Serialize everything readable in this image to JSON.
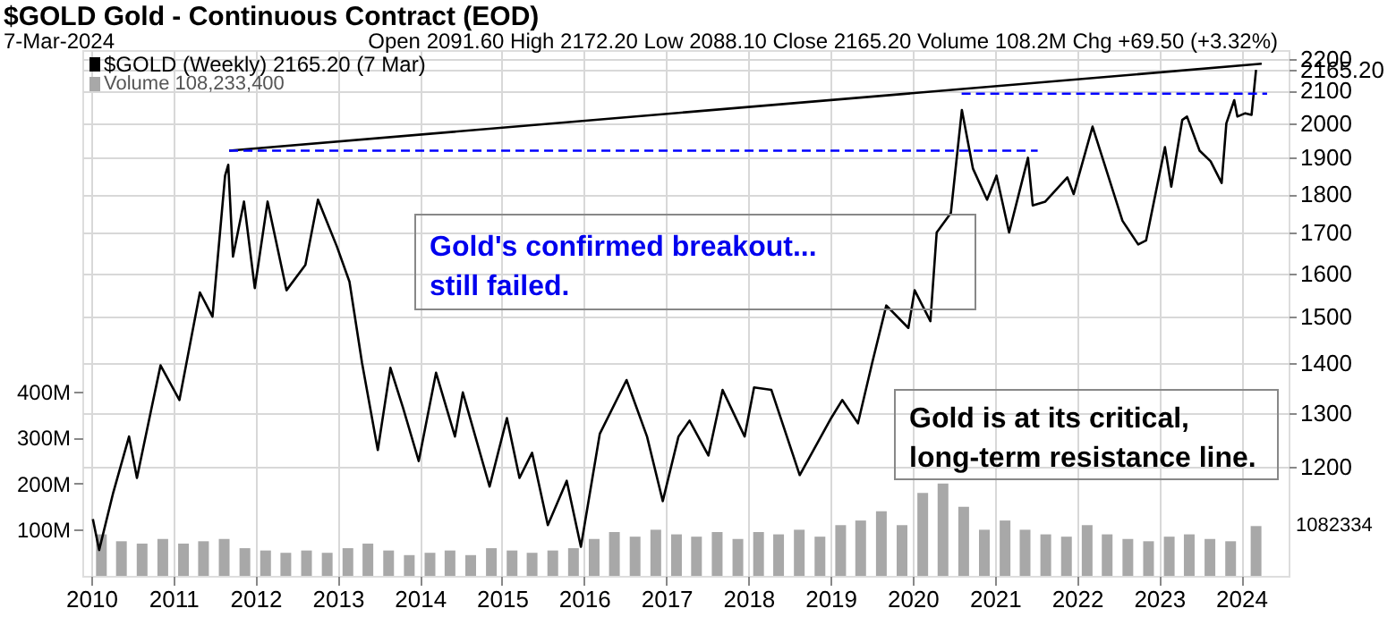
{
  "chart_data": {
    "type": "line",
    "title": "$GOLD Gold - Continuous Contract (EOD)",
    "annotations": [
      "7-Mar-2024",
      "Open 2091.60 High 2172.20 Low 2088.10 Close 2165.20 Volume 108.2M Chg +69.50 (+3.32%)",
      "Gold's confirmed breakout...\nstill failed.",
      "Gold is at its critical,\nlong-term resistance line.",
      "1082334"
    ],
    "xlim": [
      "2010-01-01",
      "2024-06-20"
    ],
    "xticks": [
      "2010",
      "2011",
      "2012",
      "2013",
      "2014",
      "2015",
      "2016",
      "2017",
      "2018",
      "2019",
      "2020",
      "2021",
      "2022",
      "2023",
      "2024"
    ],
    "log": "y",
    "ylim": [
      1020,
      2230
    ],
    "yticks": [
      1200,
      1300,
      1400,
      1500,
      1600,
      1700,
      1800,
      1900,
      2000,
      2100,
      {
        "value": 2165.2,
        "label": "2165.20"
      },
      2200
    ],
    "y2lim": [
      0,
      1140
    ],
    "y2ticks": [
      {
        "value": 100,
        "label": "100M"
      },
      {
        "value": 200,
        "label": "200M"
      },
      {
        "value": 300,
        "label": "300M"
      },
      {
        "value": 400,
        "label": "400M"
      }
    ],
    "grid": true,
    "legend": "top left",
    "marker": "none",
    "series": [
      {
        "name": "$GOLD (Weekly) 2165.20 (7 Mar)",
        "color": "#000000",
        "line_style": "solid",
        "x": [
          "2010-01-08",
          "2010-02-05",
          "2010-04-09",
          "2010-06-18",
          "2010-07-23",
          "2010-09-24",
          "2010-11-05",
          "2011-01-28",
          "2011-04-29",
          "2011-06-24",
          "2011-08-19",
          "2011-09-02",
          "2011-09-23",
          "2011-11-11",
          "2011-12-29",
          "2012-02-24",
          "2012-05-18",
          "2012-08-10",
          "2012-10-05",
          "2012-12-28",
          "2013-02-22",
          "2013-04-19",
          "2013-06-28",
          "2013-08-23",
          "2013-10-18",
          "2013-12-27",
          "2014-03-14",
          "2014-06-06",
          "2014-07-11",
          "2014-11-07",
          "2015-01-23",
          "2015-03-20",
          "2015-05-15",
          "2015-07-24",
          "2015-10-16",
          "2015-12-18",
          "2016-03-11",
          "2016-07-08",
          "2016-10-07",
          "2016-12-16",
          "2017-02-24",
          "2017-04-14",
          "2017-07-07",
          "2017-09-08",
          "2017-12-15",
          "2018-01-26",
          "2018-04-13",
          "2018-08-17",
          "2019-01-04",
          "2019-02-22",
          "2019-05-03",
          "2019-07-05",
          "2019-09-06",
          "2019-12-13",
          "2020-01-10",
          "2020-03-20",
          "2020-04-17",
          "2020-06-19",
          "2020-08-07",
          "2020-09-25",
          "2020-11-27",
          "2021-01-08",
          "2021-03-05",
          "2021-05-28",
          "2021-06-18",
          "2021-08-13",
          "2021-11-19",
          "2021-12-17",
          "2022-03-11",
          "2022-04-29",
          "2022-07-22",
          "2022-09-30",
          "2022-11-04",
          "2023-01-27",
          "2023-02-24",
          "2023-04-14",
          "2023-05-05",
          "2023-06-30",
          "2023-08-18",
          "2023-10-06",
          "2023-10-27",
          "2023-12-01",
          "2023-12-15",
          "2024-01-19",
          "2024-02-16",
          "2024-03-07"
        ],
        "values": [
          1110,
          1060,
          1155,
          1255,
          1180,
          1305,
          1395,
          1325,
          1555,
          1500,
          1850,
          1880,
          1640,
          1780,
          1565,
          1780,
          1560,
          1620,
          1785,
          1665,
          1580,
          1400,
          1230,
          1390,
          1310,
          1210,
          1380,
          1255,
          1340,
          1165,
          1290,
          1180,
          1225,
          1100,
          1175,
          1065,
          1260,
          1365,
          1255,
          1140,
          1255,
          1285,
          1220,
          1345,
          1255,
          1350,
          1345,
          1185,
          1290,
          1325,
          1280,
          1400,
          1525,
          1475,
          1560,
          1490,
          1700,
          1750,
          2040,
          1870,
          1785,
          1850,
          1700,
          1900,
          1770,
          1780,
          1845,
          1800,
          1990,
          1890,
          1730,
          1670,
          1680,
          1930,
          1820,
          2010,
          2020,
          1920,
          1890,
          1830,
          2000,
          2070,
          2020,
          2030,
          2025,
          2165.2
        ]
      },
      {
        "name": "Volume 108,233,400",
        "type": "bar",
        "axis": "y2",
        "color": "#a8a8a8",
        "x": [
          "2010-02-15",
          "2010-05-15",
          "2010-08-15",
          "2010-11-15",
          "2011-02-15",
          "2011-05-15",
          "2011-08-15",
          "2011-11-15",
          "2012-02-15",
          "2012-05-15",
          "2012-08-15",
          "2012-11-15",
          "2013-02-15",
          "2013-05-15",
          "2013-08-15",
          "2013-11-15",
          "2014-02-15",
          "2014-05-15",
          "2014-08-15",
          "2014-11-15",
          "2015-02-15",
          "2015-05-15",
          "2015-08-15",
          "2015-11-15",
          "2016-02-15",
          "2016-05-15",
          "2016-08-15",
          "2016-11-15",
          "2017-02-15",
          "2017-05-15",
          "2017-08-15",
          "2017-11-15",
          "2018-02-15",
          "2018-05-15",
          "2018-08-15",
          "2018-11-15",
          "2019-02-15",
          "2019-05-15",
          "2019-08-15",
          "2019-11-15",
          "2020-02-15",
          "2020-05-15",
          "2020-08-15",
          "2020-11-15",
          "2021-02-15",
          "2021-05-15",
          "2021-08-15",
          "2021-11-15",
          "2022-02-15",
          "2022-05-15",
          "2022-08-15",
          "2022-11-15",
          "2023-02-15",
          "2023-05-15",
          "2023-08-15",
          "2023-11-15",
          "2024-03-07"
        ],
        "values": [
          90,
          75,
          70,
          80,
          70,
          75,
          80,
          60,
          55,
          50,
          55,
          50,
          60,
          70,
          55,
          45,
          50,
          55,
          45,
          60,
          55,
          50,
          55,
          60,
          80,
          95,
          85,
          100,
          90,
          85,
          95,
          80,
          95,
          90,
          100,
          85,
          110,
          120,
          140,
          110,
          180,
          200,
          150,
          100,
          120,
          100,
          90,
          85,
          110,
          90,
          80,
          75,
          85,
          90,
          80,
          75,
          108
        ]
      },
      {
        "color": "#000000",
        "line_style": "solid",
        "x": [
          "2011-09-06",
          "2024-04-01"
        ],
        "values": [
          1920,
          2185
        ]
      },
      {
        "color": "#0000ff",
        "line_style": "dashed",
        "x": [
          "2011-09-06",
          "2021-07-10"
        ],
        "values": [
          1920,
          1920
        ]
      },
      {
        "color": "#0000ff",
        "line_style": "dashed",
        "x": [
          "2020-08-06",
          "2024-04-25"
        ],
        "values": [
          2090,
          2090
        ]
      }
    ]
  }
}
